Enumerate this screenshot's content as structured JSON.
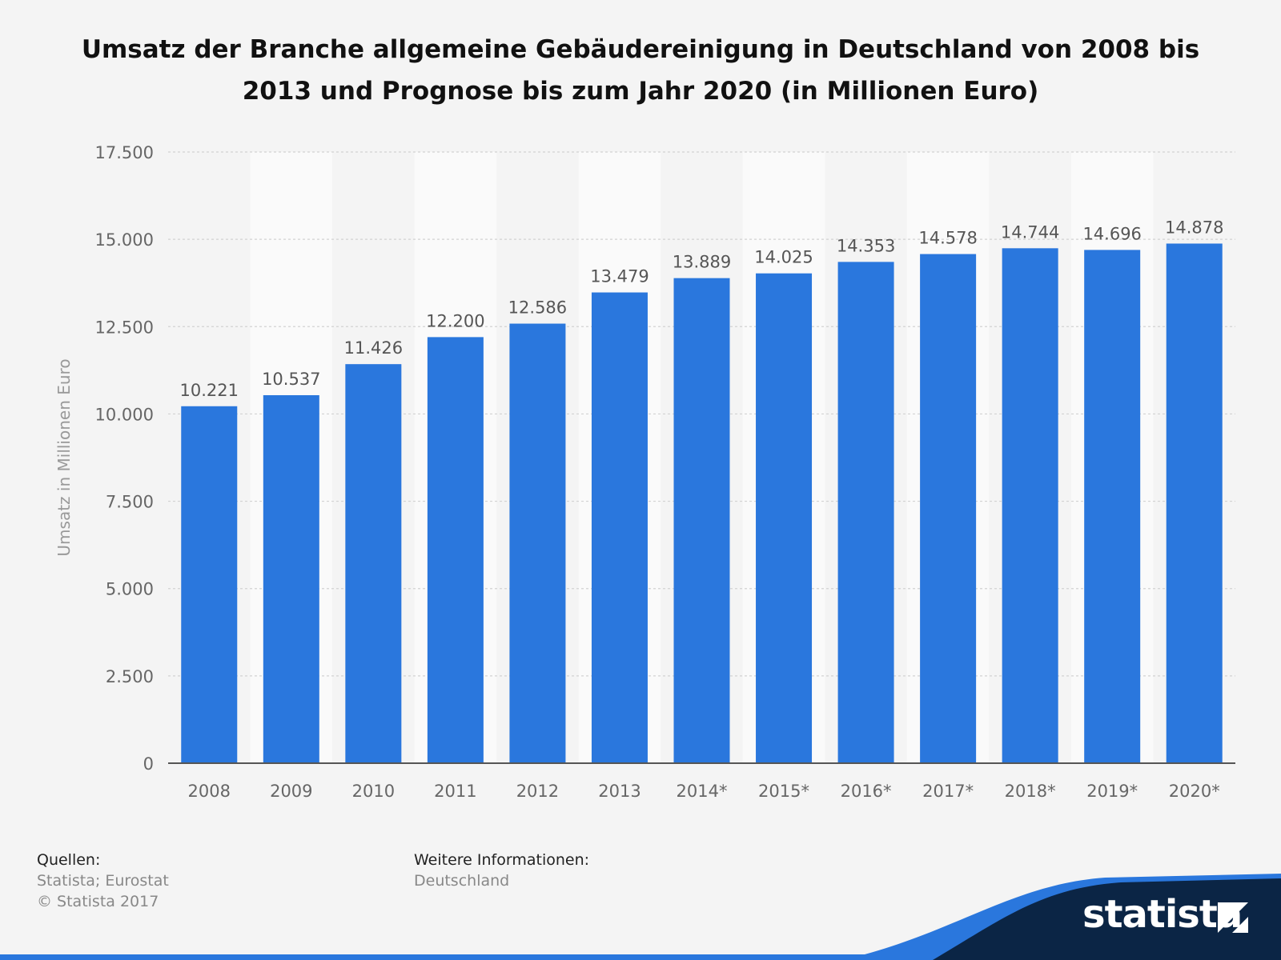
{
  "chart_data": {
    "type": "bar",
    "title": "Umsatz der Branche allgemeine Gebäudereinigung in Deutschland von 2008 bis 2013 und Prognose bis zum Jahr 2020 (in Millionen Euro)",
    "title_lines": [
      "Umsatz der Branche allgemeine Gebäudereinigung in Deutschland von 2008 bis",
      "2013 und Prognose bis zum Jahr 2020 (in Millionen Euro)"
    ],
    "xlabel": "",
    "ylabel": "Umsatz in Millionen Euro",
    "ylim": [
      0,
      17500
    ],
    "yticks": [
      0,
      2500,
      5000,
      7500,
      10000,
      12500,
      15000,
      17500
    ],
    "ytick_labels": [
      "0",
      "2.500",
      "5.000",
      "7.500",
      "10.000",
      "12.500",
      "15.000",
      "17.500"
    ],
    "categories": [
      "2008",
      "2009",
      "2010",
      "2011",
      "2012",
      "2013",
      "2014*",
      "2015*",
      "2016*",
      "2017*",
      "2018*",
      "2019*",
      "2020*"
    ],
    "values": [
      10221,
      10537,
      11426,
      12200,
      12586,
      13479,
      13889,
      14025,
      14353,
      14578,
      14744,
      14696,
      14878
    ],
    "value_labels": [
      "10.221",
      "10.537",
      "11.426",
      "12.200",
      "12.586",
      "13.479",
      "13.889",
      "14.025",
      "14.353",
      "14.578",
      "14.744",
      "14.696",
      "14.878"
    ],
    "grid": true,
    "bar_color": "#2a77dd"
  },
  "footer": {
    "sources_heading": "Quellen:",
    "sources_line1": "Statista; Eurostat",
    "sources_line2": "© Statista 2017",
    "info_heading": "Weitere Informationen:",
    "info_text": "Deutschland"
  },
  "brand": {
    "name": "statista",
    "color": "#0b2545",
    "accent": "#2a77dd"
  }
}
